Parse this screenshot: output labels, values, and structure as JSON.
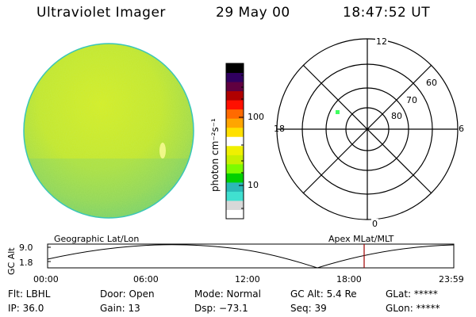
{
  "header": {
    "title": "Ultraviolet Imager",
    "date": "29 May 00",
    "time": "18:47:52 UT"
  },
  "colorbar": {
    "unit_label": "photon cm⁻²s⁻¹",
    "tick_100": "100",
    "tick_10": "10",
    "scale": "log",
    "colors": [
      "#ffffff",
      "#d8d8d8",
      "#40e0d0",
      "#2bb8b8",
      "#00d000",
      "#7cfc00",
      "#c8f000",
      "#f0f000",
      "#ffffff",
      "#ffe000",
      "#ffa500",
      "#ff6a00",
      "#ff1000",
      "#b00000",
      "#600040",
      "#300060",
      "#000000"
    ]
  },
  "polar_plot": {
    "mlt_top": "12",
    "mlt_left": "18",
    "mlt_right": "6",
    "mlt_bottom": "0",
    "lat_60": "60",
    "lat_70": "70",
    "lat_80": "80",
    "point_color": "#40ff60"
  },
  "timeline": {
    "left_title": "Geographic Lat/Lon",
    "right_title": "Apex MLat/MLT",
    "axis_label": "GC Alt",
    "y_top": "9.0",
    "y_bottom": "1.8",
    "x_ticks": [
      "00:00",
      "06:00",
      "12:00",
      "18:00",
      "23:59"
    ],
    "marker_color": "#a00000"
  },
  "info": {
    "flt": "Flt: LBHL",
    "door": "Door: Open",
    "mode": "Mode: Normal",
    "gc_alt": "GC Alt: 5.4 Re",
    "glat": "GLat: *****",
    "ip": "IP: 36.0",
    "gain": "Gain: 13",
    "dsp": "Dsp:  −73.1",
    "seq": "Seq: 39",
    "glon": "GLon: *****"
  }
}
